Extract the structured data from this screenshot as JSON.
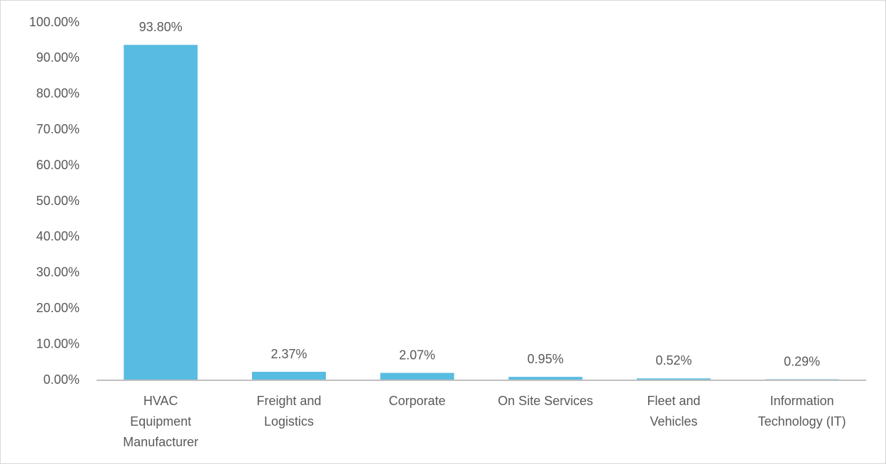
{
  "chart_data": {
    "type": "bar",
    "categories": [
      [
        "HVAC",
        "Equipment",
        "Manufacturer"
      ],
      [
        "Freight and",
        "Logistics"
      ],
      [
        "Corporate"
      ],
      [
        "On Site Services"
      ],
      [
        "Fleet and",
        "Vehicles"
      ],
      [
        "Information",
        "Technology (IT)"
      ]
    ],
    "values": [
      93.8,
      2.37,
      2.07,
      0.95,
      0.52,
      0.29
    ],
    "value_labels": [
      "93.80%",
      "2.37%",
      "2.07%",
      "0.95%",
      "0.52%",
      "0.29%"
    ],
    "color": "#58bbe1",
    "ylim": [
      0,
      100
    ],
    "yticks": [
      {
        "value": 0,
        "label": "0.00%"
      },
      {
        "value": 10,
        "label": "10.00%"
      },
      {
        "value": 20,
        "label": "20.00%"
      },
      {
        "value": 30,
        "label": "30.00%"
      },
      {
        "value": 40,
        "label": "40.00%"
      },
      {
        "value": 50,
        "label": "50.00%"
      },
      {
        "value": 60,
        "label": "60.00%"
      },
      {
        "value": 70,
        "label": "70.00%"
      },
      {
        "value": 80,
        "label": "80.00%"
      },
      {
        "value": 90,
        "label": "90.00%"
      },
      {
        "value": 100,
        "label": "100.00%"
      }
    ],
    "grid": false
  }
}
